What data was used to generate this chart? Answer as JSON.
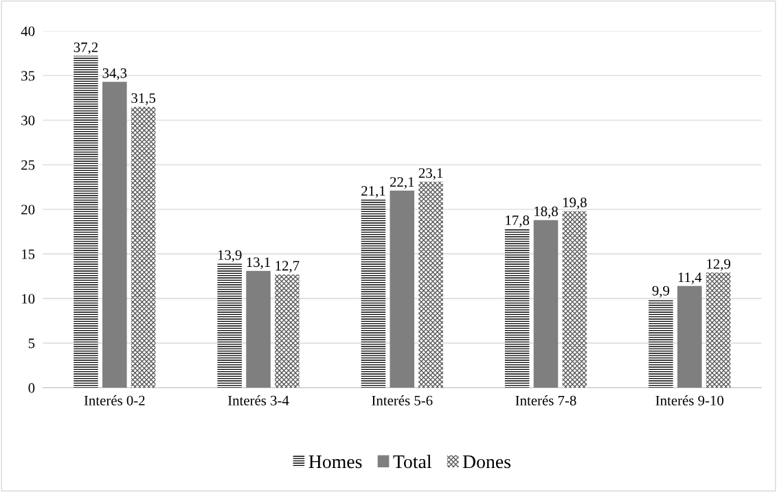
{
  "chart_data": {
    "type": "bar",
    "categories": [
      "Interés 0-2",
      "Interés 3-4",
      "Interés 5-6",
      "Interés 7-8",
      "Interés 9-10"
    ],
    "series": [
      {
        "name": "Homes",
        "color": "#000000",
        "values": [
          37.2,
          13.9,
          21.1,
          17.8,
          9.9
        ],
        "value_labels": [
          "37,2",
          "13,9",
          "21,1",
          "17,8",
          "9,9"
        ]
      },
      {
        "name": "Total",
        "color": "#7f7f7f",
        "values": [
          34.3,
          13.1,
          22.1,
          18.8,
          11.4
        ],
        "value_labels": [
          "34,3",
          "13,1",
          "22,1",
          "18,8",
          "11,4"
        ]
      },
      {
        "name": "Dones",
        "color": "#595959",
        "values": [
          31.5,
          12.7,
          23.1,
          19.8,
          12.9
        ],
        "value_labels": [
          "31,5",
          "12,7",
          "23,1",
          "19,8",
          "12,9"
        ]
      }
    ],
    "ylim": [
      0,
      40
    ],
    "yticks": [
      0,
      5,
      10,
      15,
      20,
      25,
      30,
      35,
      40
    ],
    "grid": "y",
    "legend": "bottom"
  }
}
